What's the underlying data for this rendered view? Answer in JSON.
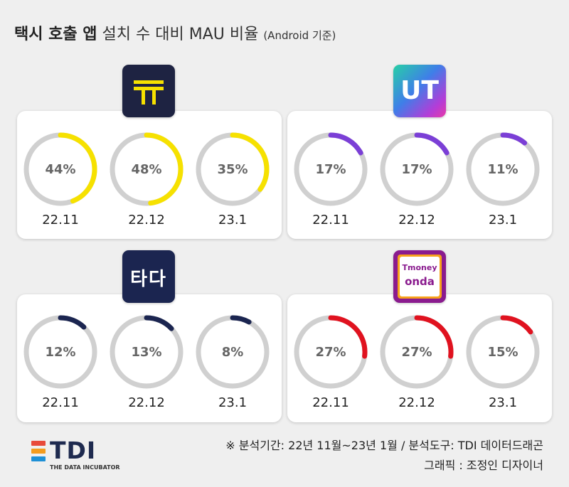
{
  "title": {
    "bold": "택시 호출 앱",
    "light": "설치 수 대비 MAU 비율",
    "small": "(Android 기준)"
  },
  "chart_data": [
    {
      "type": "donut",
      "app_logo": "kakao-t-logo",
      "logo_text": "T",
      "categories": [
        "22.11",
        "22.12",
        "23.1"
      ],
      "values": [
        44,
        48,
        35
      ],
      "labels": [
        "44%",
        "48%",
        "35%"
      ],
      "unit": "%",
      "color": "#f6e100"
    },
    {
      "type": "donut",
      "app_logo": "ut-logo",
      "logo_text": "UT",
      "categories": [
        "22.11",
        "22.12",
        "23.1"
      ],
      "values": [
        17,
        17,
        11
      ],
      "labels": [
        "17%",
        "17%",
        "11%"
      ],
      "unit": "%",
      "color": "#7b3fd6"
    },
    {
      "type": "donut",
      "app_logo": "tada-logo",
      "logo_text": "타다",
      "categories": [
        "22.11",
        "22.12",
        "23.1"
      ],
      "values": [
        12,
        13,
        8
      ],
      "labels": [
        "12%",
        "13%",
        "8%"
      ],
      "unit": "%",
      "color": "#1b2550"
    },
    {
      "type": "donut",
      "app_logo": "tmoney-onda-logo",
      "logo_text": [
        "Tmoney",
        "onda"
      ],
      "categories": [
        "22.11",
        "22.12",
        "23.1"
      ],
      "values": [
        27,
        27,
        15
      ],
      "labels": [
        "27%",
        "27%",
        "15%"
      ],
      "unit": "%",
      "color": "#e0121f"
    }
  ],
  "footer": {
    "note": "※ 분석기간: 22년 11월~23년 1월 / 분석도구: TDI 데이터드래곤",
    "credit": "그래픽 : 조정인 디자이너"
  },
  "brand": {
    "name": "TDI",
    "subtitle": "THE DATA INCUBATOR"
  },
  "colors": {
    "track": "#d0d0d0",
    "background": "#efefef",
    "tdi_bars": [
      "#e84a3a",
      "#f39c1e",
      "#1e90d6"
    ]
  }
}
